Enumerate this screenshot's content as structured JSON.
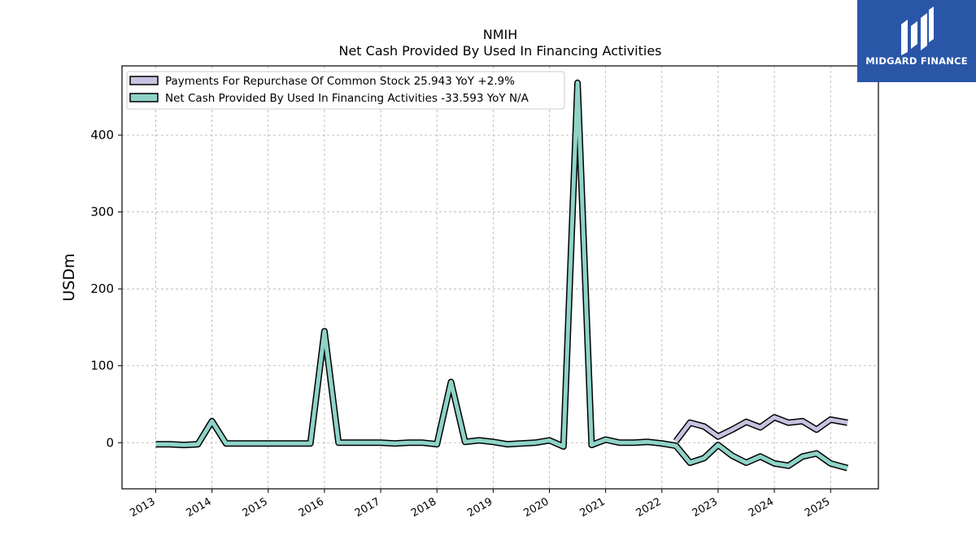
{
  "logo": {
    "text": "MIDGARD FINANCE",
    "icon": "midgard-logo-icon",
    "bg_color": "#2a56a8"
  },
  "chart_data": {
    "type": "line",
    "title": "NMIH",
    "subtitle": "Net Cash Provided By Used In Financing Activities",
    "ylabel": "USDm",
    "xlabel": "",
    "ylim": [
      -60,
      490
    ],
    "xlim": [
      2012.4,
      2025.85
    ],
    "yticks": [
      0,
      100,
      200,
      300,
      400
    ],
    "xticks": [
      2013,
      2014,
      2015,
      2016,
      2017,
      2018,
      2019,
      2020,
      2021,
      2022,
      2023,
      2024,
      2025
    ],
    "grid": true,
    "legend_position": "top-left",
    "series": [
      {
        "name": "Payments For Repurchase Of Common Stock",
        "legend_label": "Payments For Repurchase Of Common Stock  25.943 YoY +2.9%",
        "color": "#c5c3e0",
        "points": [
          [
            2022.25,
            2
          ],
          [
            2022.5,
            26
          ],
          [
            2022.75,
            21
          ],
          [
            2023.0,
            8
          ],
          [
            2023.25,
            17
          ],
          [
            2023.5,
            27
          ],
          [
            2023.75,
            20
          ],
          [
            2024.0,
            33
          ],
          [
            2024.25,
            26
          ],
          [
            2024.5,
            28
          ],
          [
            2024.75,
            17
          ],
          [
            2025.0,
            30
          ],
          [
            2025.3,
            26
          ]
        ]
      },
      {
        "name": "Net Cash Provided By Used In Financing Activities",
        "legend_label": "Net Cash Provided By Used In Financing Activities  -33.593 YoY N/A",
        "color": "#8fd3c8",
        "points": [
          [
            2013.0,
            -2
          ],
          [
            2013.25,
            -2
          ],
          [
            2013.5,
            -3
          ],
          [
            2013.75,
            -2
          ],
          [
            2014.0,
            28
          ],
          [
            2014.25,
            -1
          ],
          [
            2014.5,
            -1
          ],
          [
            2014.75,
            -1
          ],
          [
            2015.0,
            -1
          ],
          [
            2015.25,
            -1
          ],
          [
            2015.5,
            -1
          ],
          [
            2015.75,
            -1
          ],
          [
            2016.0,
            145
          ],
          [
            2016.25,
            0
          ],
          [
            2016.5,
            0
          ],
          [
            2016.75,
            0
          ],
          [
            2017.0,
            0
          ],
          [
            2017.25,
            -1
          ],
          [
            2017.5,
            0
          ],
          [
            2017.75,
            0
          ],
          [
            2018.0,
            -2
          ],
          [
            2018.25,
            79
          ],
          [
            2018.5,
            1
          ],
          [
            2018.75,
            3
          ],
          [
            2019.0,
            1
          ],
          [
            2019.25,
            -2
          ],
          [
            2019.5,
            -1
          ],
          [
            2019.75,
            0
          ],
          [
            2020.0,
            3
          ],
          [
            2020.25,
            -5
          ],
          [
            2020.5,
            468
          ],
          [
            2020.75,
            -3
          ],
          [
            2021.0,
            4
          ],
          [
            2021.25,
            0
          ],
          [
            2021.5,
            0
          ],
          [
            2021.75,
            1
          ],
          [
            2022.0,
            -1
          ],
          [
            2022.25,
            -4
          ],
          [
            2022.5,
            -26
          ],
          [
            2022.75,
            -20
          ],
          [
            2023.0,
            -3
          ],
          [
            2023.25,
            -17
          ],
          [
            2023.5,
            -26
          ],
          [
            2023.75,
            -18
          ],
          [
            2024.0,
            -27
          ],
          [
            2024.25,
            -30
          ],
          [
            2024.5,
            -18
          ],
          [
            2024.75,
            -14
          ],
          [
            2025.0,
            -27
          ],
          [
            2025.3,
            -33
          ]
        ]
      }
    ]
  }
}
